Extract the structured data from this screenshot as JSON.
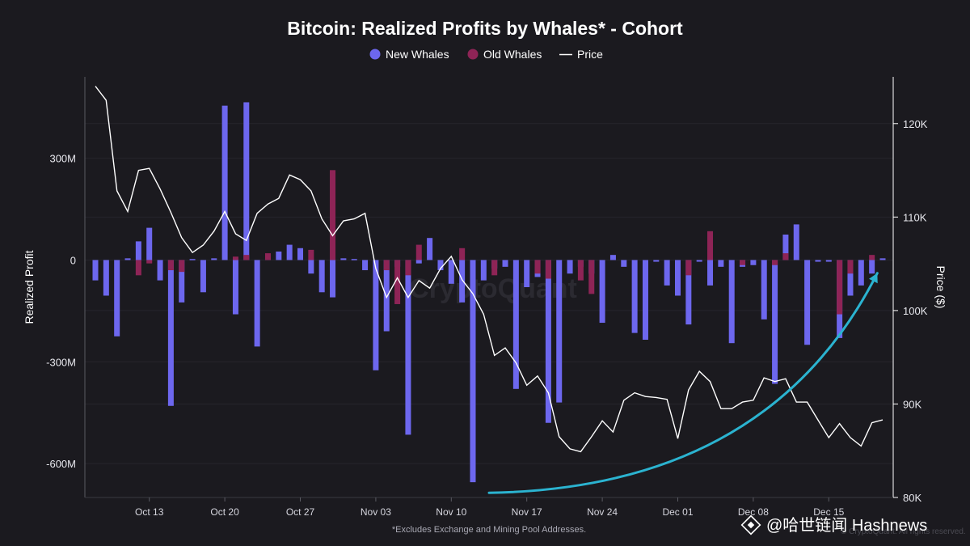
{
  "colors": {
    "background": "#1b1a1f",
    "new_whales": "#6d67ee",
    "old_whales": "#8e2456",
    "price": "#ffffff",
    "arrow": "#2bb3d0",
    "grid": "#26252c"
  },
  "watermark": {
    "brand_center": "CryptoQuant",
    "brand_corner": "© CryptoQuant. All rights reserved.",
    "source_icon": "binance-diamond-icon",
    "source_text": "@哈世链闻 Hashnews"
  },
  "chart_data": {
    "type": "bar",
    "title": "Bitcoin: Realized Profits by Whales* - Cohort",
    "footnote": "*Excludes Exchange and Mining Pool Addresses.",
    "legend": [
      {
        "name": "New Whales",
        "marker": "circle"
      },
      {
        "name": "Old Whales",
        "marker": "circle"
      },
      {
        "name": "Price",
        "marker": "line"
      }
    ],
    "legend_position": "top-center",
    "grid": true,
    "x_axis": {
      "start": "2025-10-08",
      "end": "2025-12-20",
      "tick_labels": [
        "Oct 13",
        "Oct 20",
        "Oct 27",
        "Nov 03",
        "Nov 10",
        "Nov 17",
        "Nov 24",
        "Dec 01",
        "Dec 08",
        "Dec 15"
      ]
    },
    "y_left": {
      "label": "Realized Profit",
      "ticks": [
        "300M",
        "0",
        "-300M",
        "-600M"
      ],
      "tick_values": [
        300,
        0,
        -300,
        -600
      ],
      "range": [
        -700,
        540
      ],
      "unit": "M"
    },
    "y_right": {
      "label": "Price ($)",
      "ticks": [
        "120K",
        "110K",
        "100K",
        "90K",
        "80K"
      ],
      "tick_values": [
        120,
        110,
        100,
        90,
        80
      ],
      "range": [
        80,
        125
      ],
      "unit": "K"
    },
    "annotation": {
      "type": "curved-arrow",
      "from": {
        "date": "2025-11-14",
        "price": 80.5
      },
      "to": {
        "date": "2025-12-20",
        "price": 104
      }
    },
    "series": [
      {
        "name": "New Whales",
        "x": [
          "2025-10-08",
          "2025-10-09",
          "2025-10-10",
          "2025-10-11",
          "2025-10-12",
          "2025-10-13",
          "2025-10-14",
          "2025-10-15",
          "2025-10-16",
          "2025-10-17",
          "2025-10-18",
          "2025-10-19",
          "2025-10-20",
          "2025-10-21",
          "2025-10-22",
          "2025-10-23",
          "2025-10-24",
          "2025-10-25",
          "2025-10-26",
          "2025-10-27",
          "2025-10-28",
          "2025-10-29",
          "2025-10-30",
          "2025-10-31",
          "2025-11-01",
          "2025-11-02",
          "2025-11-03",
          "2025-11-04",
          "2025-11-05",
          "2025-11-06",
          "2025-11-07",
          "2025-11-08",
          "2025-11-09",
          "2025-11-10",
          "2025-11-11",
          "2025-11-12",
          "2025-11-13",
          "2025-11-14",
          "2025-11-15",
          "2025-11-16",
          "2025-11-17",
          "2025-11-18",
          "2025-11-19",
          "2025-11-20",
          "2025-11-21",
          "2025-11-22",
          "2025-11-23",
          "2025-11-24",
          "2025-11-25",
          "2025-11-26",
          "2025-11-27",
          "2025-11-28",
          "2025-11-29",
          "2025-11-30",
          "2025-12-01",
          "2025-12-02",
          "2025-12-03",
          "2025-12-04",
          "2025-12-05",
          "2025-12-06",
          "2025-12-07",
          "2025-12-08",
          "2025-12-09",
          "2025-12-10",
          "2025-12-11",
          "2025-12-12",
          "2025-12-13",
          "2025-12-14",
          "2025-12-15",
          "2025-12-16",
          "2025-12-17",
          "2025-12-18",
          "2025-12-19",
          "2025-12-20"
        ],
        "values": [
          -60,
          -105,
          -225,
          5,
          55,
          95,
          -60,
          -430,
          -125,
          3,
          -95,
          5,
          455,
          -160,
          465,
          -255,
          5,
          25,
          45,
          35,
          -40,
          -95,
          -110,
          5,
          3,
          -30,
          -325,
          -210,
          -20,
          -515,
          -10,
          65,
          -30,
          -70,
          -125,
          -655,
          -60,
          -25,
          -20,
          -380,
          -80,
          -50,
          -480,
          -420,
          -40,
          -20,
          -40,
          -185,
          15,
          -20,
          -215,
          -235,
          -5,
          -75,
          -105,
          -190,
          -5,
          -75,
          -20,
          -245,
          -20,
          -15,
          -175,
          -365,
          75,
          105,
          -250,
          -5,
          -5,
          -230,
          -105,
          -75,
          -40,
          5
        ]
      },
      {
        "name": "Old Whales",
        "x": [
          "2025-10-12",
          "2025-10-13",
          "2025-10-15",
          "2025-10-16",
          "2025-10-21",
          "2025-10-22",
          "2025-10-24",
          "2025-10-28",
          "2025-10-30",
          "2025-11-04",
          "2025-11-05",
          "2025-11-06",
          "2025-11-07",
          "2025-11-11",
          "2025-11-14",
          "2025-11-18",
          "2025-11-19",
          "2025-11-22",
          "2025-11-23",
          "2025-12-02",
          "2025-12-04",
          "2025-12-07",
          "2025-12-10",
          "2025-12-11",
          "2025-12-16",
          "2025-12-17",
          "2025-12-19"
        ],
        "values": [
          -45,
          -10,
          -30,
          -35,
          10,
          15,
          20,
          30,
          265,
          -30,
          -130,
          -45,
          45,
          35,
          -45,
          -40,
          -55,
          -60,
          -100,
          -45,
          85,
          -15,
          -15,
          20,
          -160,
          -40,
          15
        ]
      },
      {
        "name": "Price",
        "x": [
          "2025-10-08",
          "2025-10-09",
          "2025-10-10",
          "2025-10-11",
          "2025-10-12",
          "2025-10-13",
          "2025-10-14",
          "2025-10-15",
          "2025-10-16",
          "2025-10-17",
          "2025-10-18",
          "2025-10-19",
          "2025-10-20",
          "2025-10-21",
          "2025-10-22",
          "2025-10-23",
          "2025-10-24",
          "2025-10-25",
          "2025-10-26",
          "2025-10-27",
          "2025-10-28",
          "2025-10-29",
          "2025-10-30",
          "2025-10-31",
          "2025-11-01",
          "2025-11-02",
          "2025-11-03",
          "2025-11-04",
          "2025-11-05",
          "2025-11-06",
          "2025-11-07",
          "2025-11-08",
          "2025-11-09",
          "2025-11-10",
          "2025-11-11",
          "2025-11-12",
          "2025-11-13",
          "2025-11-14",
          "2025-11-15",
          "2025-11-16",
          "2025-11-17",
          "2025-11-18",
          "2025-11-19",
          "2025-11-20",
          "2025-11-21",
          "2025-11-22",
          "2025-11-23",
          "2025-11-24",
          "2025-11-25",
          "2025-11-26",
          "2025-11-27",
          "2025-11-28",
          "2025-11-29",
          "2025-11-30",
          "2025-12-01",
          "2025-12-02",
          "2025-12-03",
          "2025-12-04",
          "2025-12-05",
          "2025-12-06",
          "2025-12-07",
          "2025-12-08",
          "2025-12-09",
          "2025-12-10",
          "2025-12-11",
          "2025-12-12",
          "2025-12-13",
          "2025-12-14",
          "2025-12-15",
          "2025-12-16",
          "2025-12-17",
          "2025-12-18",
          "2025-12-19",
          "2025-12-20"
        ],
        "values": [
          124,
          122.5,
          112.8,
          110.6,
          115,
          115.2,
          113,
          110.5,
          107.8,
          106.2,
          107,
          108.5,
          110.6,
          108.2,
          107.5,
          110.4,
          111.4,
          112,
          114.5,
          114,
          112.8,
          109.8,
          108,
          109.6,
          109.8,
          110.4,
          104.5,
          101.4,
          103.5,
          101.4,
          103.2,
          102.4,
          104.5,
          105.8,
          103.3,
          101.8,
          99.6,
          95.2,
          96,
          94.4,
          92,
          93,
          91.2,
          86.5,
          85.2,
          84.9,
          86.5,
          88.2,
          87,
          90.4,
          91.2,
          90.8,
          90.7,
          90.5,
          86.3,
          91.5,
          93.5,
          92.4,
          89.5,
          89.5,
          90.2,
          90.4,
          92.8,
          92.4,
          92.7,
          90.2,
          90.2,
          88.3,
          86.4,
          87.9,
          86.4,
          85.5,
          88,
          88.3
        ]
      }
    ]
  }
}
